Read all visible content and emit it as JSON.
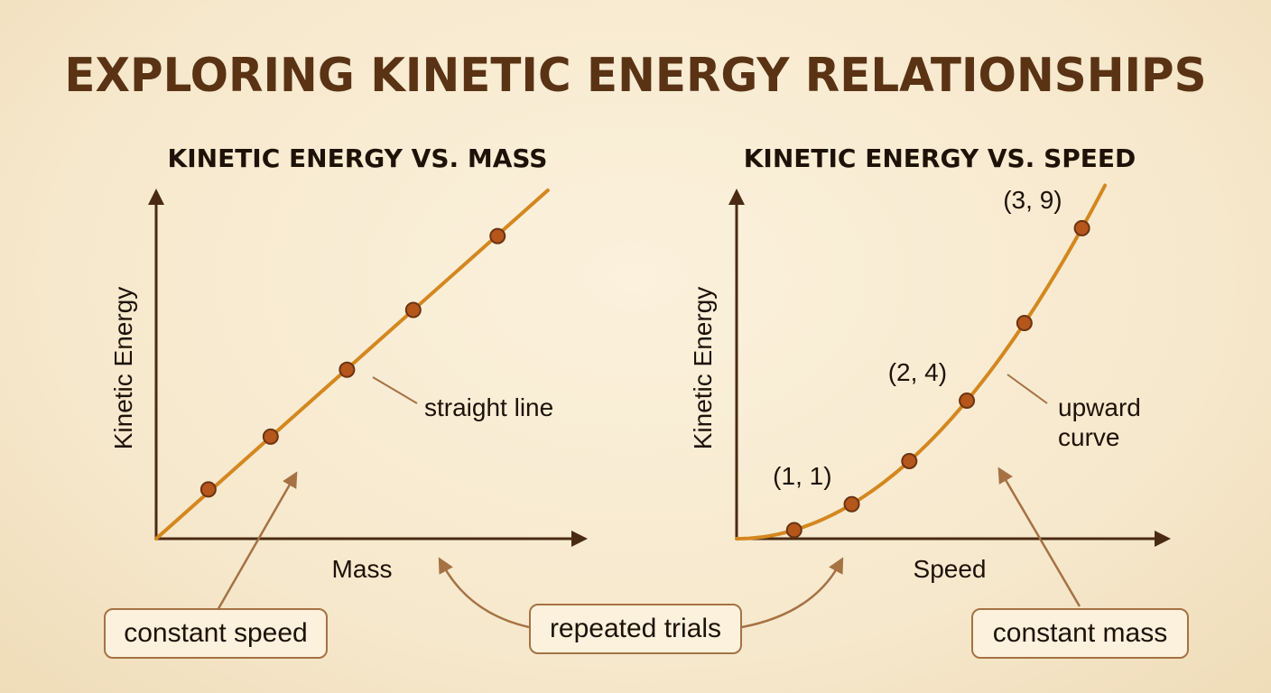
{
  "title": "EXPLORING KINETIC ENERGY RELATIONSHIPS",
  "colors": {
    "title": "#5a3214",
    "axis": "#4a2a12",
    "line": "#d4871f",
    "marker_fill": "#b5561a",
    "marker_stroke": "#6b3312",
    "annotation": "#a57244"
  },
  "chart_data": [
    {
      "type": "line",
      "title": "KINETIC ENERGY VS. MASS",
      "xlabel": "Mass",
      "ylabel": "Kinetic Energy",
      "xlim": [
        0,
        10
      ],
      "ylim": [
        0,
        10
      ],
      "line": {
        "x": [
          0,
          9.75
        ],
        "y": [
          0,
          9.9
        ]
      },
      "points": {
        "x": [
          1.3,
          2.85,
          4.75,
          6.4,
          8.5
        ],
        "y": [
          1.4,
          2.9,
          4.8,
          6.5,
          8.6
        ]
      },
      "point_labels": [],
      "annotations": [
        {
          "text": "straight line"
        }
      ],
      "grid": false,
      "legend": false
    },
    {
      "type": "line",
      "title": "KINETIC ENERGY VS. SPEED",
      "xlabel": "Speed",
      "ylabel": "Kinetic Energy",
      "xlim": [
        0,
        3.45
      ],
      "ylim": [
        0,
        10.2
      ],
      "curve": {
        "x": [
          0,
          0.5,
          1,
          1.5,
          2,
          2.5,
          3,
          3.2
        ],
        "y": [
          0,
          0.25,
          1,
          2.25,
          4,
          6.25,
          9,
          10.24
        ]
      },
      "points": {
        "x": [
          0.5,
          1,
          1.5,
          2,
          2.5,
          3
        ],
        "y": [
          0.25,
          1,
          2.25,
          4,
          6.25,
          9
        ]
      },
      "point_labels": [
        {
          "text": "(1, 1)",
          "x": 1,
          "y": 1
        },
        {
          "text": "(2, 4)",
          "x": 2,
          "y": 4
        },
        {
          "text": "(3, 9)",
          "x": 3,
          "y": 9
        }
      ],
      "annotations": [
        {
          "text": "upward",
          "text2": "curve"
        }
      ],
      "grid": false,
      "legend": false
    }
  ],
  "labels": {
    "constant_speed": "constant speed",
    "repeated_trials": "repeated trials",
    "constant_mass": "constant mass"
  }
}
